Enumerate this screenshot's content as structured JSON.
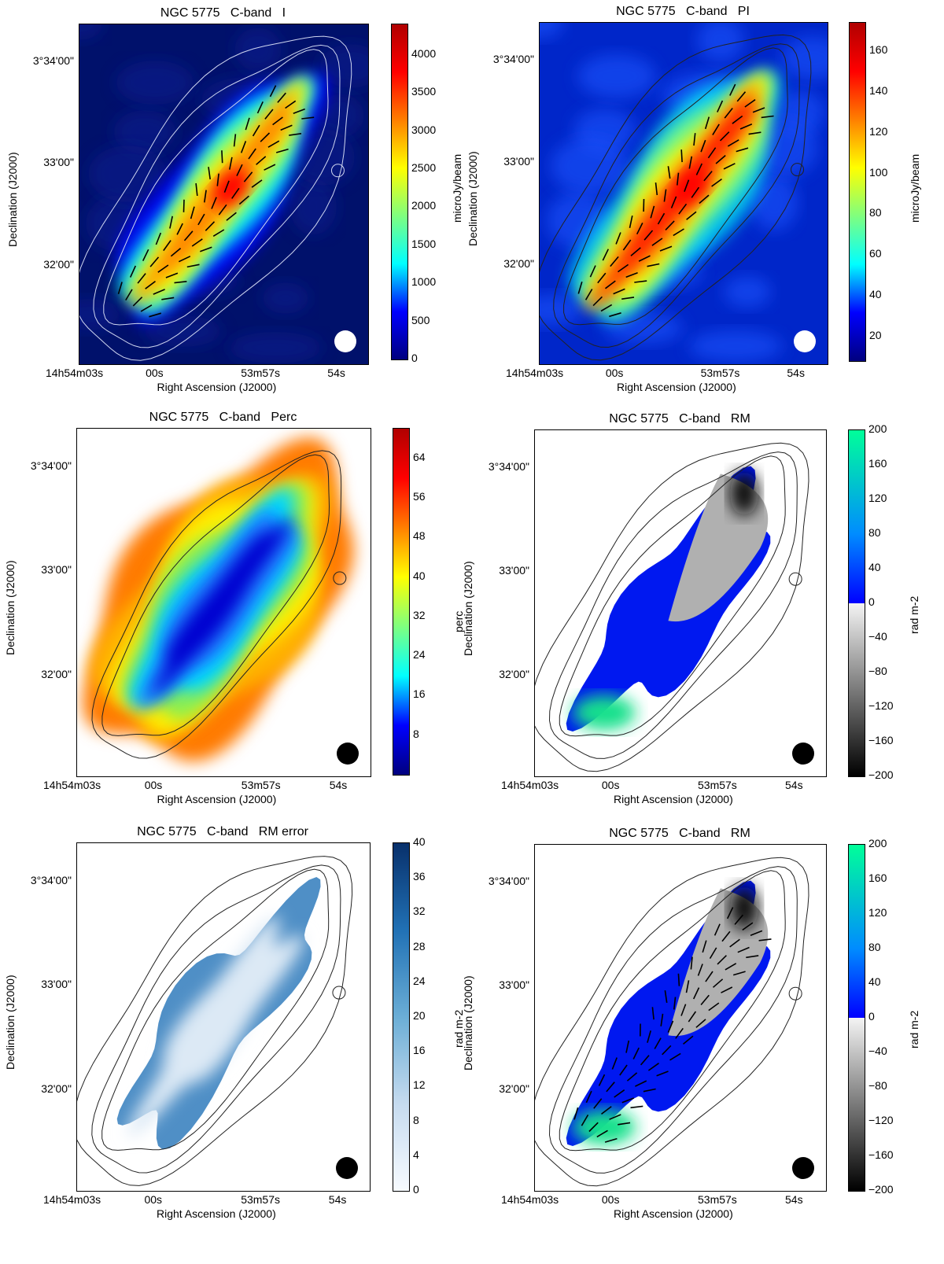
{
  "panels": [
    {
      "id": "I",
      "title": "NGC 5775   C-band   I",
      "xlabel": "Right Ascension (J2000)",
      "ylabel": "Declination (J2000)",
      "xticks": [
        "14h54m03s",
        "00s",
        "53m57s",
        "54s"
      ],
      "yticks": [
        "3°34'00\"",
        "33'00\"",
        "32'00\""
      ],
      "colorbar": {
        "label": "microJy/beam",
        "ticks": [
          "4000",
          "3500",
          "3000",
          "2500",
          "2000",
          "1500",
          "1000",
          "500",
          "0"
        ],
        "min": 0,
        "max": 4400,
        "colormap": "jet",
        "colors": [
          "#00007f",
          "#0000ff",
          "#00ffff",
          "#7fff7f",
          "#ffff00",
          "#ff7f00",
          "#ff0000",
          "#b00000"
        ]
      },
      "background": "#00116b",
      "contour_color": "#cfd6f0",
      "beam_color": "#ffffff",
      "vectors": true
    },
    {
      "id": "PI",
      "title": "NGC 5775   C-band   PI",
      "xlabel": "Right Ascension (J2000)",
      "ylabel": "Declination (J2000)",
      "xticks": [
        "14h54m03s",
        "00s",
        "53m57s",
        "54s"
      ],
      "yticks": [
        "3°34'00\"",
        "33'00\"",
        "32'00\""
      ],
      "colorbar": {
        "label": "microJy/beam",
        "ticks": [
          "160",
          "140",
          "120",
          "100",
          "80",
          "60",
          "40",
          "20"
        ],
        "min": 8,
        "max": 174,
        "colormap": "jet",
        "colors": [
          "#00007f",
          "#0000ff",
          "#00ffff",
          "#7fff7f",
          "#ffff00",
          "#ff7f00",
          "#ff0000",
          "#b00000"
        ]
      },
      "background": "#0026c9",
      "contour_color": "#222222",
      "beam_color": "#ffffff",
      "vectors": true
    },
    {
      "id": "Perc",
      "title": "NGC 5775   C-band   Perc",
      "xlabel": "Right Ascension (J2000)",
      "ylabel": "Declination (J2000)",
      "xticks": [
        "14h54m03s",
        "00s",
        "53m57s",
        "54s"
      ],
      "yticks": [
        "3°34'00\"",
        "33'00\"",
        "32'00\""
      ],
      "colorbar": {
        "label": "perc",
        "ticks": [
          "64",
          "56",
          "48",
          "40",
          "32",
          "24",
          "16",
          "8"
        ],
        "min": 0,
        "max": 70,
        "colormap": "jet",
        "colors": [
          "#00007f",
          "#0000ff",
          "#00ffff",
          "#7fff7f",
          "#ffff00",
          "#ff7f00",
          "#ff0000",
          "#b00000"
        ]
      },
      "background": "#ffffff",
      "contour_color": "#222222",
      "beam_color": "#000000",
      "vectors": false
    },
    {
      "id": "RM",
      "title": "NGC 5775   C-band   RM",
      "xlabel": "Right Ascension (J2000)",
      "ylabel": "Declination (J2000)",
      "xticks": [
        "14h54m03s",
        "00s",
        "53m57s",
        "54s"
      ],
      "yticks": [
        "3°34'00\"",
        "33'00\"",
        "32'00\""
      ],
      "colorbar": {
        "label": "rad m-2",
        "ticks": [
          "200",
          "160",
          "120",
          "80",
          "40",
          "0",
          "−40",
          "−80",
          "−120",
          "−160",
          "−200"
        ],
        "min": -200,
        "max": 200,
        "colormap": "gray-blue-green",
        "colors": [
          "#000000",
          "#f2f2f2",
          "#0000ff",
          "#00ff99"
        ]
      },
      "background": "#ffffff",
      "contour_color": "#222222",
      "beam_color": "#000000",
      "vectors": false
    },
    {
      "id": "RMerr",
      "title": "NGC 5775   C-band   RM error",
      "xlabel": "Right Ascension (J2000)",
      "ylabel": "Declination (J2000)",
      "xticks": [
        "14h54m03s",
        "00s",
        "53m57s",
        "54s"
      ],
      "yticks": [
        "3°34'00\"",
        "33'00\"",
        "32'00\""
      ],
      "colorbar": {
        "label": "rad m-2",
        "ticks": [
          "40",
          "36",
          "32",
          "28",
          "24",
          "20",
          "16",
          "12",
          "8",
          "4",
          "0"
        ],
        "min": 0,
        "max": 40,
        "colormap": "blues",
        "colors": [
          "#f7fbff",
          "#c6dbef",
          "#6baed6",
          "#2171b5",
          "#08306b"
        ]
      },
      "background": "#ffffff",
      "contour_color": "#222222",
      "beam_color": "#000000",
      "vectors": false
    },
    {
      "id": "RM2",
      "title": "NGC 5775   C-band   RM",
      "xlabel": "Right Ascension (J2000)",
      "ylabel": "Declination (J2000)",
      "xticks": [
        "14h54m03s",
        "00s",
        "53m57s",
        "54s"
      ],
      "yticks": [
        "3°34'00\"",
        "33'00\"",
        "32'00\""
      ],
      "colorbar": {
        "label": "rad m-2",
        "ticks": [
          "200",
          "160",
          "120",
          "80",
          "40",
          "0",
          "−40",
          "−80",
          "−120",
          "−160",
          "−200"
        ],
        "min": -200,
        "max": 200,
        "colormap": "gray-blue-green",
        "colors": [
          "#000000",
          "#f2f2f2",
          "#0000ff",
          "#00ff99"
        ]
      },
      "background": "#ffffff",
      "contour_color": "#222222",
      "beam_color": "#000000",
      "vectors": true
    }
  ]
}
